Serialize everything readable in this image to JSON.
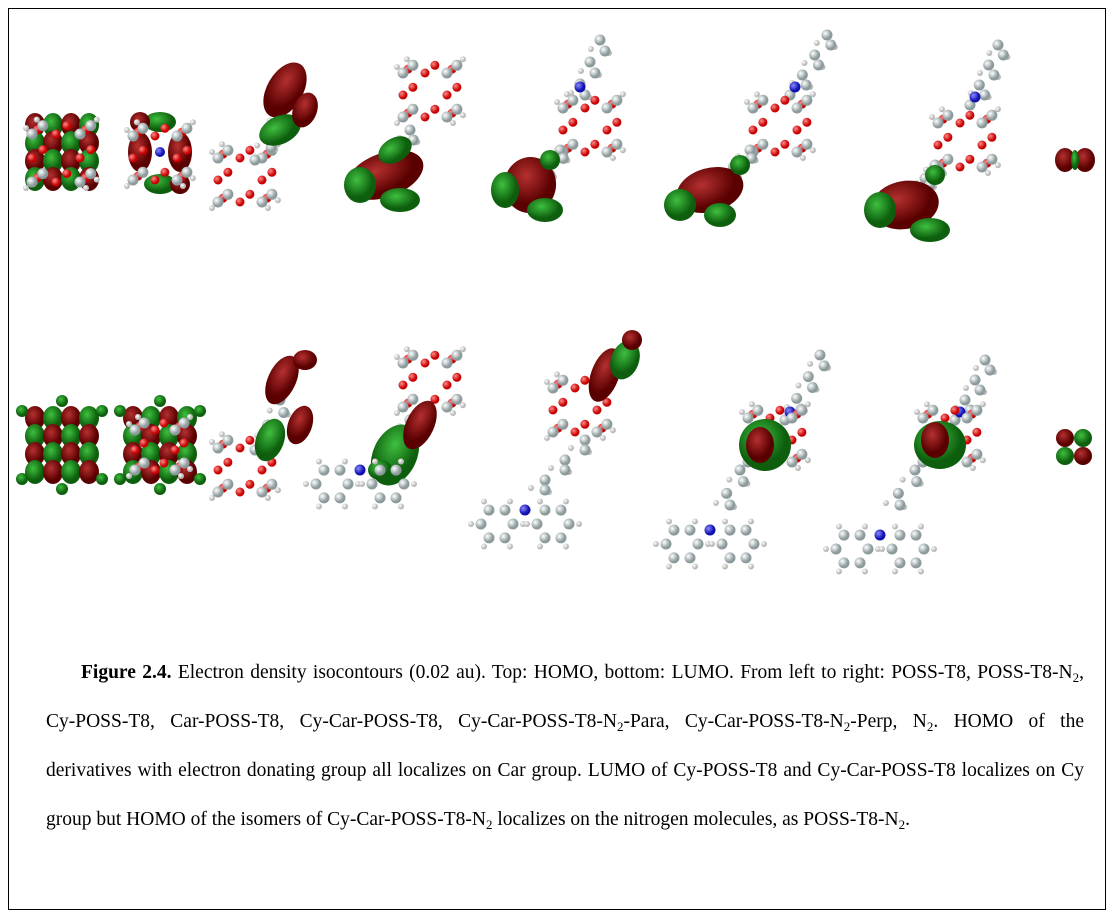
{
  "caption": {
    "label": "Figure 2.4.",
    "runs": [
      {
        "text": " Electron density isocontours (0.02 au).  Top: HOMO, bottom: LUMO.  From left to right: POSS-T8, POSS-T8-N"
      },
      {
        "sub": "2"
      },
      {
        "text": ", Cy-POSS-T8, Car-POSS-T8, Cy-Car-POSS-T8, Cy-Car-POSS-T8-N"
      },
      {
        "sub": "2"
      },
      {
        "text": "-Para, Cy-Car-POSS-T8-N"
      },
      {
        "sub": "2"
      },
      {
        "text": "-Perp, N"
      },
      {
        "sub": "2"
      },
      {
        "text": ".  HOMO of the derivatives with electron donating group all localizes on Car group.  LUMO of Cy-POSS-T8 and Cy-Car-POSS-T8 localizes on Cy group but HOMO of the isomers of Cy-Car-POSS-T8-N"
      },
      {
        "sub": "2"
      },
      {
        "text": " localizes on the nitrogen molecules, as POSS-T8-N"
      },
      {
        "sub": "2"
      },
      {
        "text": "."
      }
    ]
  }
}
